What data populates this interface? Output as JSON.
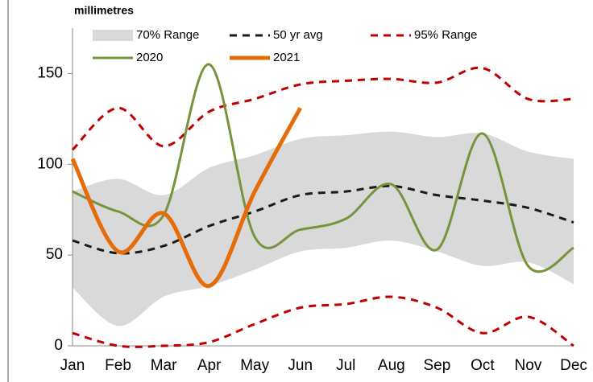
{
  "chart_data": {
    "type": "line",
    "y_label": "millimetres",
    "categories": [
      "Jan",
      "Feb",
      "Mar",
      "Apr",
      "May",
      "Jun",
      "Jul",
      "Aug",
      "Sep",
      "Oct",
      "Nov",
      "Dec"
    ],
    "ylim": [
      0,
      175
    ],
    "yticks": [
      0,
      50,
      100,
      150
    ],
    "series": [
      {
        "name": "70% Range",
        "color": "#d9d9d9",
        "style": "band",
        "low": [
          32,
          11,
          27,
          33,
          42,
          52,
          54,
          58,
          52,
          44,
          46,
          34
        ],
        "high": [
          85,
          92,
          83,
          98,
          105,
          114,
          116,
          118,
          115,
          117,
          107,
          103
        ]
      },
      {
        "name": "50 yr avg",
        "color": "#1a1a1a",
        "style": "dashed",
        "values": [
          58,
          51,
          55,
          66,
          74,
          83,
          85,
          88,
          83,
          80,
          76,
          68
        ]
      },
      {
        "name": "95% Range",
        "color": "#c00000",
        "style": "dashed-range",
        "low": [
          7,
          0,
          0,
          2,
          12,
          21,
          23,
          27,
          21,
          7,
          16,
          0
        ],
        "high": [
          108,
          131,
          110,
          129,
          136,
          144,
          146,
          147,
          145,
          153,
          136,
          136
        ]
      },
      {
        "name": "2020",
        "color": "#77933c",
        "style": "solid",
        "values": [
          85,
          74,
          72,
          155,
          60,
          64,
          70,
          89,
          53,
          117,
          44,
          54
        ]
      },
      {
        "name": "2021",
        "color": "#e46c0a",
        "style": "thick",
        "values": [
          103,
          52,
          73,
          33,
          85,
          131,
          null,
          null,
          null,
          null,
          null,
          null
        ]
      }
    ]
  }
}
